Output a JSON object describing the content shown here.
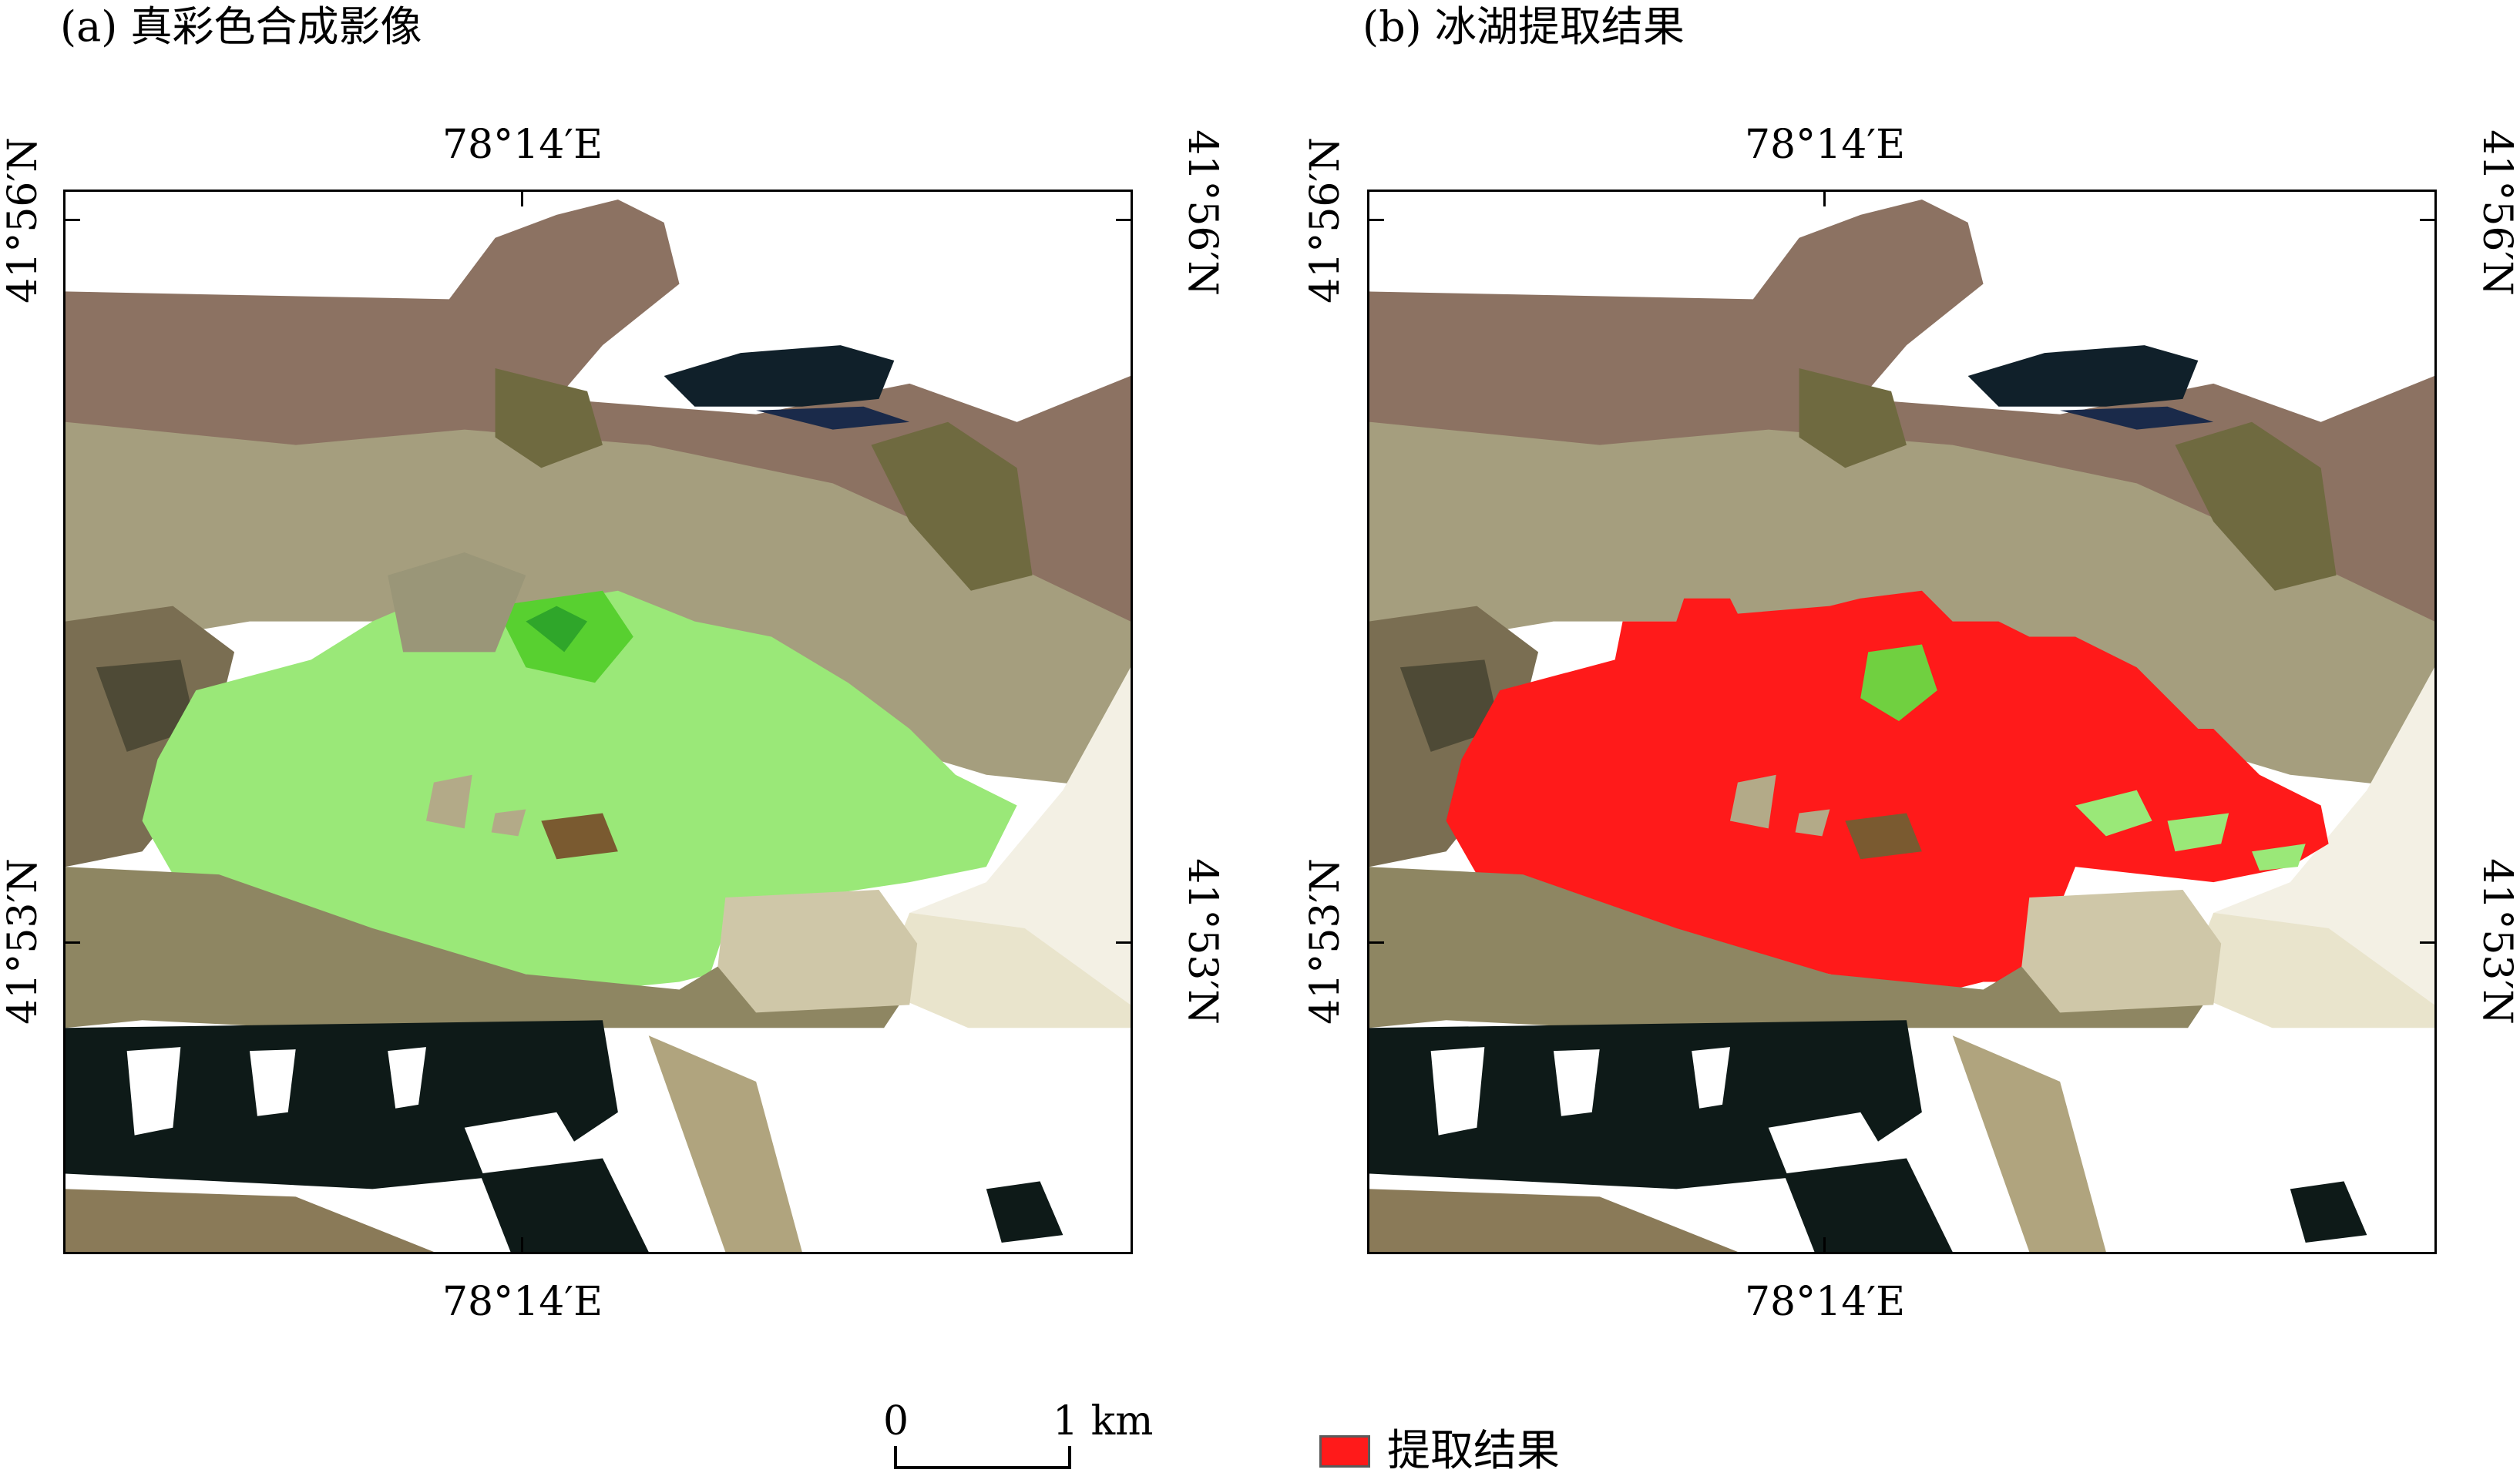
{
  "panel_a": {
    "title": "(a) 真彩色合成影像",
    "lon_top": "78°14′E",
    "lon_bottom": "78°14′E",
    "lat_upper_left": "41°56′N",
    "lat_lower_left": "41°53′N",
    "lat_upper_right": "41°56′N",
    "lat_lower_right": "41°53′N"
  },
  "panel_b": {
    "title": "(b) 冰湖提取结果",
    "lon_top": "78°14′E",
    "lon_bottom": "78°14′E",
    "lat_upper_left": "41°56′N",
    "lat_lower_left": "41°53′N",
    "lat_upper_right": "41°56′N",
    "lat_lower_right": "41°53′N"
  },
  "scale_bar": {
    "start": "0",
    "end": "1 km"
  },
  "legend": {
    "label": "提取结果",
    "color": "#ff1a1a"
  },
  "colors": {
    "snow": "#ffffff",
    "terrain_brown": "#8a7060",
    "terrain_khaki": "#a09a78",
    "lake_green": "#8ee860",
    "extraction_red": "#ff1a1a",
    "shadow_dark": "#0e1a18"
  }
}
